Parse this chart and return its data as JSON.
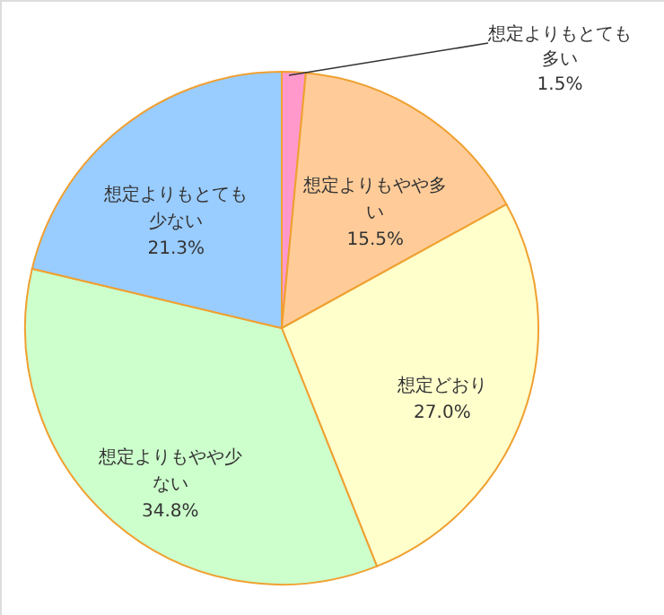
{
  "chart_data": {
    "type": "pie",
    "categories": [
      "想定よりもとても多い",
      "想定よりもやや多い",
      "想定どおり",
      "想定よりもやや少ない",
      "想定よりもとても少ない"
    ],
    "values": [
      1.5,
      15.5,
      27.0,
      34.8,
      21.3
    ],
    "value_labels": [
      "1.5%",
      "15.5%",
      "27.0%",
      "34.8%",
      "21.3%"
    ],
    "colors": [
      "#ff99cc",
      "#ffcc99",
      "#ffffcc",
      "#ccffcc",
      "#99ccff"
    ]
  }
}
